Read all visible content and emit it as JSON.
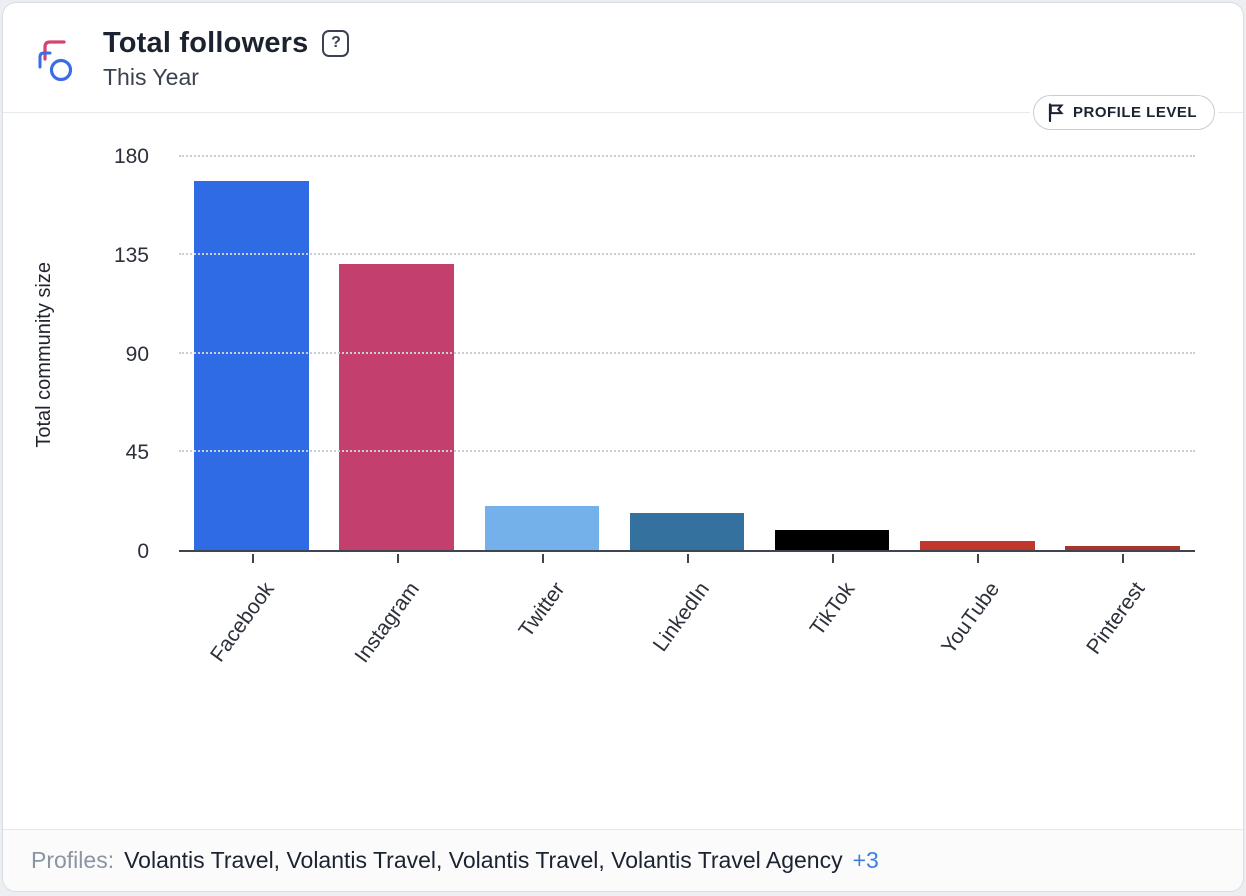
{
  "header": {
    "title": "Total followers",
    "subtitle": "This Year",
    "help_icon": "question-mark",
    "badge_label": "PROFILE LEVEL"
  },
  "chart_data": {
    "type": "bar",
    "title": "Total followers",
    "subtitle": "This Year",
    "categories": [
      "Facebook",
      "Instagram",
      "Twitter",
      "LinkedIn",
      "TikTok",
      "YouTube",
      "Pinterest"
    ],
    "values": [
      169,
      131,
      20,
      17,
      9,
      4,
      2
    ],
    "colors": [
      "#2e6be4",
      "#c23f6e",
      "#74b0ea",
      "#34719f",
      "#000000",
      "#c1372c",
      "#a8342e"
    ],
    "xlabel": "",
    "ylabel": "Total community size",
    "ylim": [
      0,
      180
    ],
    "yticks": [
      0,
      45,
      90,
      135,
      180
    ],
    "grid": "dotted-horizontal",
    "legend": "none"
  },
  "footer": {
    "label": "Profiles:",
    "profiles_text": "Volantis Travel, Volantis Travel, Volantis Travel, Volantis Travel Agency",
    "more_link": "+3"
  },
  "colors": {
    "accent_blue": "#2e6be4",
    "link_blue": "#3f7fd9",
    "axis": "#3f454e",
    "gridline": "#c9cdd4"
  }
}
